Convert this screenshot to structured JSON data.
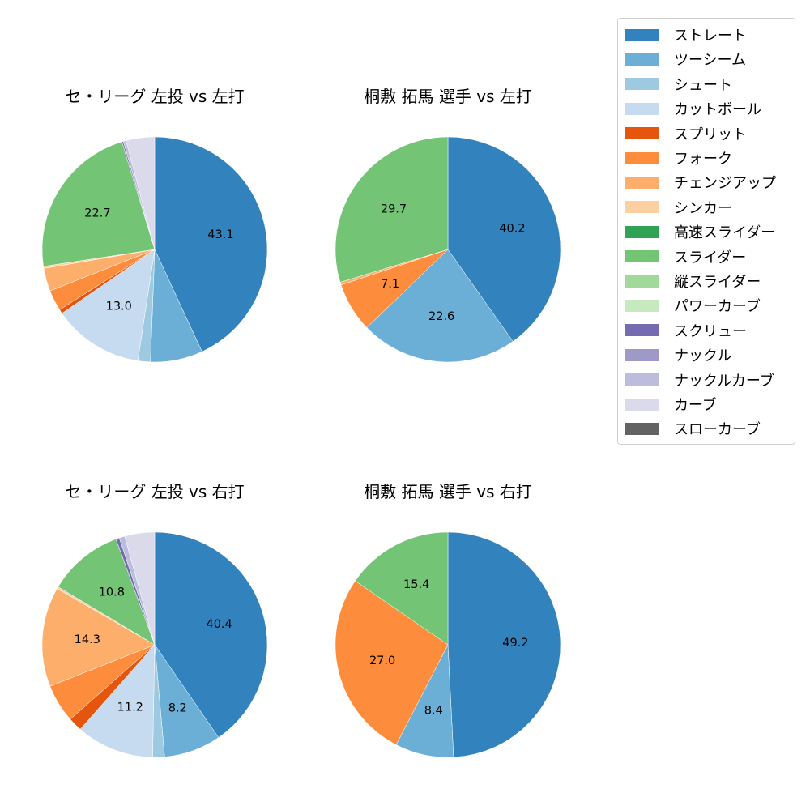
{
  "legend": {
    "items": [
      {
        "label": "ストレート",
        "color": "#3182bd"
      },
      {
        "label": "ツーシーム",
        "color": "#6baed6"
      },
      {
        "label": "シュート",
        "color": "#9ecae1"
      },
      {
        "label": "カットボール",
        "color": "#c6dbef"
      },
      {
        "label": "スプリット",
        "color": "#e6550d"
      },
      {
        "label": "フォーク",
        "color": "#fd8d3c"
      },
      {
        "label": "チェンジアップ",
        "color": "#fdae6b"
      },
      {
        "label": "シンカー",
        "color": "#fdd0a2"
      },
      {
        "label": "高速スライダー",
        "color": "#31a354"
      },
      {
        "label": "スライダー",
        "color": "#74c476"
      },
      {
        "label": "縦スライダー",
        "color": "#a1d99b"
      },
      {
        "label": "パワーカーブ",
        "color": "#c7e9c0"
      },
      {
        "label": "スクリュー",
        "color": "#756bb1"
      },
      {
        "label": "ナックル",
        "color": "#9e9ac8"
      },
      {
        "label": "ナックルカーブ",
        "color": "#bcbddc"
      },
      {
        "label": "カーブ",
        "color": "#dadaeb"
      },
      {
        "label": "スローカーブ",
        "color": "#636363"
      }
    ]
  },
  "chart_data": [
    {
      "type": "pie",
      "title": "セ・リーグ 左投 vs 左打",
      "categories": [
        "ストレート",
        "ツーシーム",
        "シュート",
        "カットボール",
        "スプリット",
        "フォーク",
        "チェンジアップ",
        "シンカー",
        "スライダー",
        "スクリュー",
        "ナックルカーブ",
        "カーブ"
      ],
      "values": [
        43.1,
        7.5,
        1.8,
        13.0,
        0.6,
        3.0,
        3.3,
        0.3,
        22.7,
        0.2,
        0.4,
        4.1
      ],
      "labels": [
        "43.1",
        "",
        "",
        "13.0",
        "",
        "",
        "",
        "",
        "22.7",
        "",
        "",
        ""
      ],
      "start_angle": 90,
      "direction": "clockwise"
    },
    {
      "type": "pie",
      "title": "桐敷 拓馬 選手 vs 左打",
      "categories": [
        "ストレート",
        "ツーシーム",
        "フォーク",
        "チェンジアップ",
        "スライダー"
      ],
      "values": [
        40.2,
        22.6,
        7.1,
        0.4,
        29.7
      ],
      "labels": [
        "40.2",
        "22.6",
        "7.1",
        "",
        "29.7"
      ],
      "start_angle": 90,
      "direction": "clockwise"
    },
    {
      "type": "pie",
      "title": "セ・リーグ 左投 vs 右打",
      "categories": [
        "ストレート",
        "ツーシーム",
        "シュート",
        "カットボール",
        "スプリット",
        "フォーク",
        "チェンジアップ",
        "シンカー",
        "スライダー",
        "スクリュー",
        "ナックルカーブ",
        "カーブ"
      ],
      "values": [
        40.4,
        8.2,
        1.7,
        11.2,
        2.0,
        5.5,
        14.3,
        0.3,
        10.8,
        0.5,
        0.8,
        4.3
      ],
      "labels": [
        "40.4",
        "8.2",
        "",
        "11.2",
        "",
        "",
        "14.3",
        "",
        "10.8",
        "",
        "",
        ""
      ],
      "start_angle": 90,
      "direction": "clockwise"
    },
    {
      "type": "pie",
      "title": "桐敷 拓馬 選手 vs 右打",
      "categories": [
        "ストレート",
        "ツーシーム",
        "フォーク",
        "スライダー"
      ],
      "values": [
        49.2,
        8.4,
        27.0,
        15.4
      ],
      "labels": [
        "49.2",
        "8.4",
        "27.0",
        "15.4"
      ],
      "start_angle": 90,
      "direction": "clockwise"
    }
  ]
}
